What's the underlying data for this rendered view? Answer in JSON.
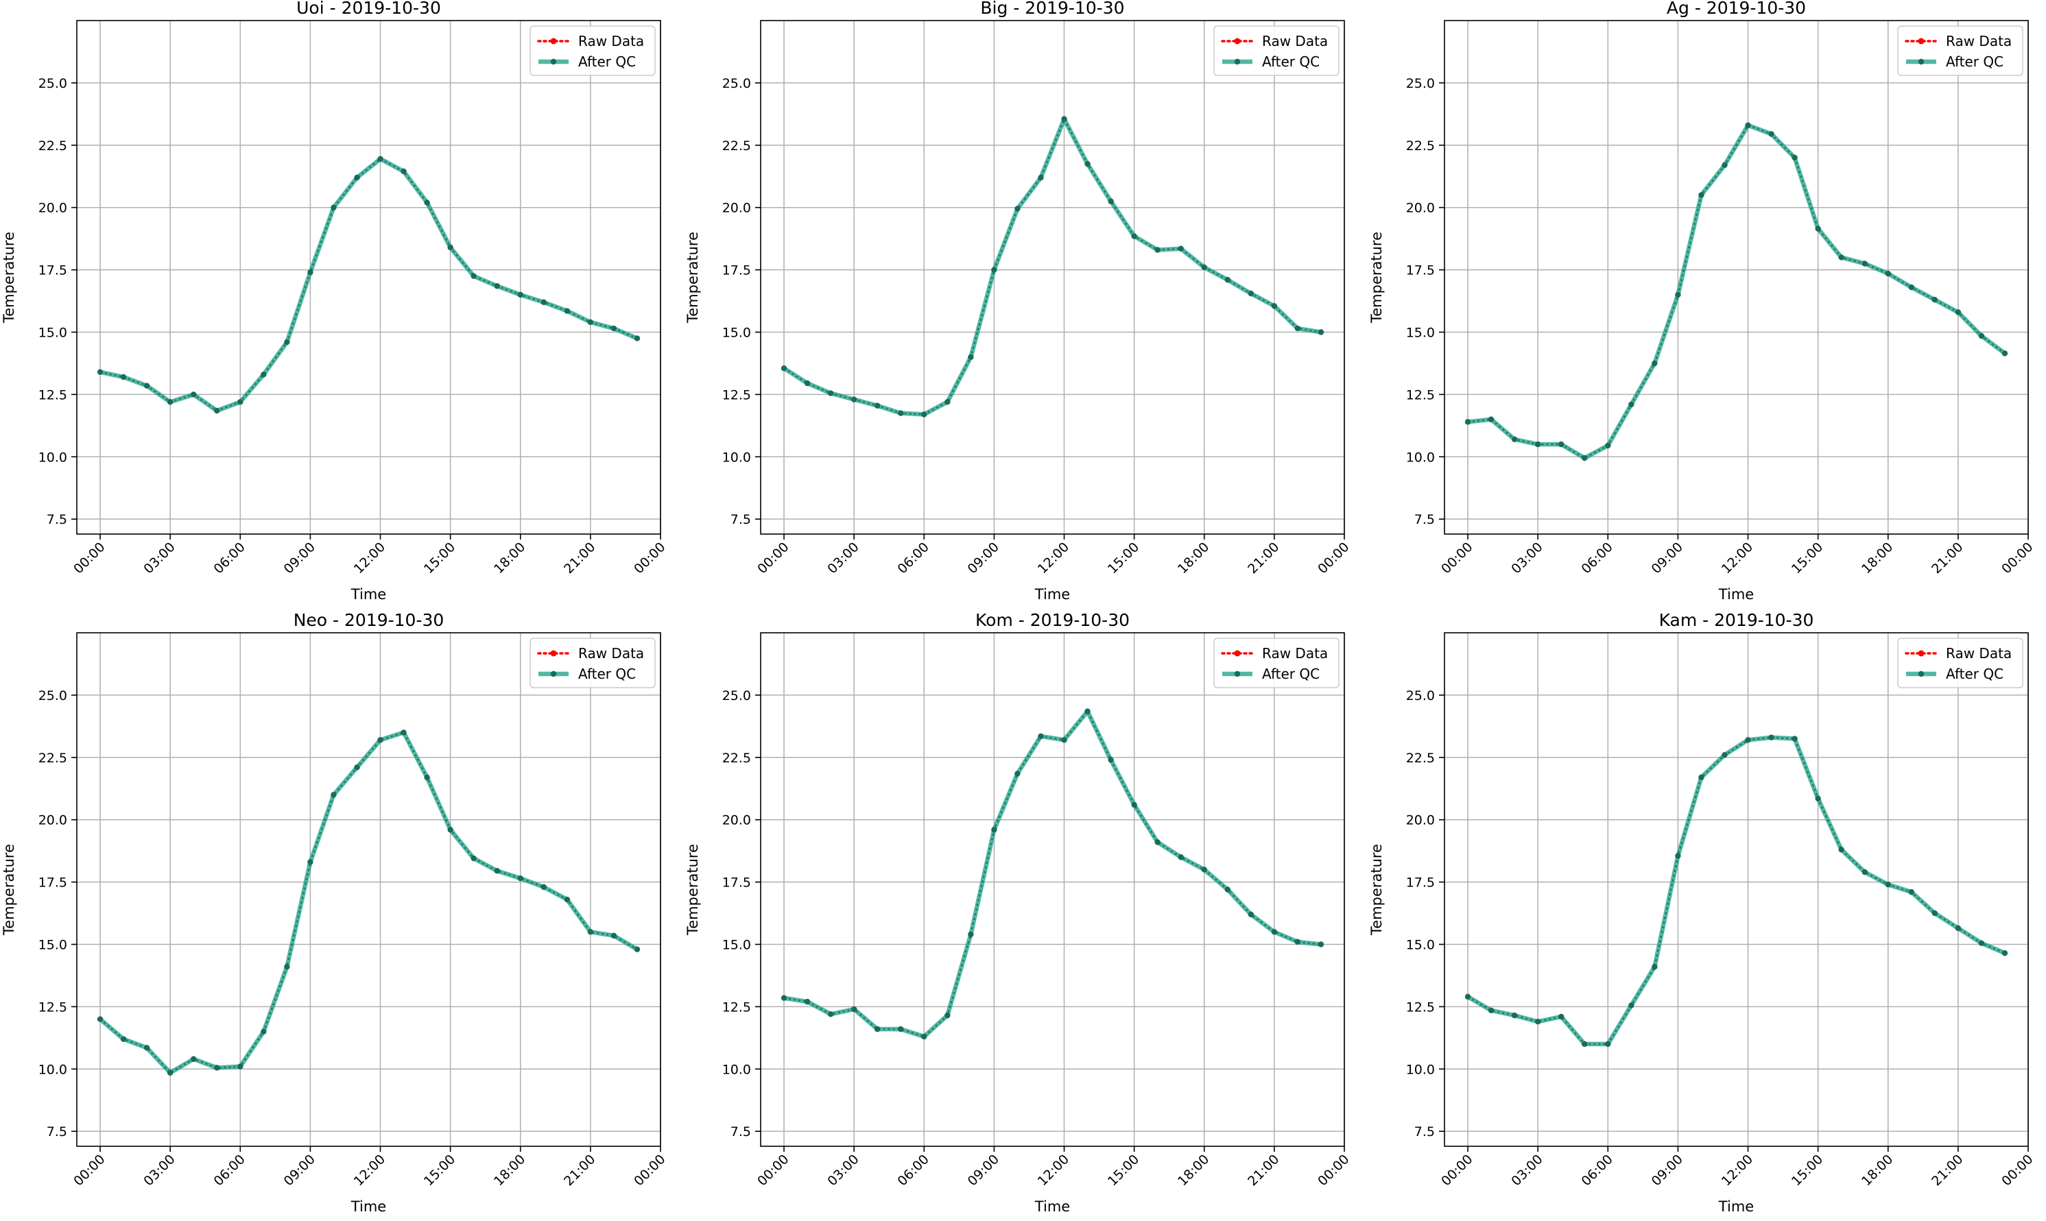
{
  "colors": {
    "raw": "#ff0000",
    "after_qc": "#16a085",
    "after_qc_marker": "#1b6b5a",
    "grid": "#b0b0b0",
    "legend_border": "#cccccc"
  },
  "chart_data": [
    {
      "type": "line",
      "title": "Uoi - 2019-10-30",
      "xlabel": "Time",
      "ylabel": "Temperature",
      "x": [
        "00:00",
        "01:00",
        "02:00",
        "03:00",
        "04:00",
        "05:00",
        "06:00",
        "07:00",
        "08:00",
        "09:00",
        "10:00",
        "11:00",
        "12:00",
        "13:00",
        "14:00",
        "15:00",
        "16:00",
        "17:00",
        "18:00",
        "19:00",
        "20:00",
        "21:00",
        "22:00",
        "23:00"
      ],
      "xlim": [
        -1,
        24
      ],
      "xticks": [
        "00:00",
        "03:00",
        "06:00",
        "09:00",
        "12:00",
        "15:00",
        "18:00",
        "21:00",
        "00:00"
      ],
      "ylim": [
        6.9,
        27.5
      ],
      "yticks": [
        "7.5",
        "10.0",
        "12.5",
        "15.0",
        "17.5",
        "20.0",
        "22.5",
        "25.0"
      ],
      "grid": true,
      "legend": "top-right",
      "series": [
        {
          "name": "Raw Data",
          "style": "dotted-red",
          "values": [
            13.4,
            13.2,
            12.85,
            12.2,
            12.5,
            11.85,
            12.2,
            13.3,
            14.6,
            17.4,
            20.0,
            21.2,
            21.95,
            21.45,
            20.2,
            18.4,
            17.25,
            16.85,
            16.5,
            16.2,
            15.85,
            15.4,
            15.15,
            14.75
          ]
        },
        {
          "name": "After QC",
          "style": "solid-green",
          "values": [
            13.4,
            13.2,
            12.85,
            12.2,
            12.5,
            11.85,
            12.2,
            13.3,
            14.6,
            17.4,
            20.0,
            21.2,
            21.95,
            21.45,
            20.2,
            18.4,
            17.25,
            16.85,
            16.5,
            16.2,
            15.85,
            15.4,
            15.15,
            14.75
          ]
        }
      ]
    },
    {
      "type": "line",
      "title": "Big - 2019-10-30",
      "xlabel": "Time",
      "ylabel": "Temperature",
      "x": [
        "00:00",
        "01:00",
        "02:00",
        "03:00",
        "04:00",
        "05:00",
        "06:00",
        "07:00",
        "08:00",
        "09:00",
        "10:00",
        "11:00",
        "12:00",
        "13:00",
        "14:00",
        "15:00",
        "16:00",
        "17:00",
        "18:00",
        "19:00",
        "20:00",
        "21:00",
        "22:00",
        "23:00"
      ],
      "xlim": [
        -1,
        24
      ],
      "xticks": [
        "00:00",
        "03:00",
        "06:00",
        "09:00",
        "12:00",
        "15:00",
        "18:00",
        "21:00",
        "00:00"
      ],
      "ylim": [
        6.9,
        27.5
      ],
      "yticks": [
        "7.5",
        "10.0",
        "12.5",
        "15.0",
        "17.5",
        "20.0",
        "22.5",
        "25.0"
      ],
      "grid": true,
      "legend": "top-right",
      "series": [
        {
          "name": "Raw Data",
          "style": "dotted-red",
          "values": [
            13.55,
            12.95,
            12.55,
            12.3,
            12.05,
            11.75,
            11.7,
            12.2,
            14.0,
            17.5,
            19.95,
            21.2,
            23.55,
            21.75,
            20.25,
            18.85,
            18.3,
            18.35,
            17.6,
            17.1,
            16.55,
            16.05,
            15.15,
            15.0
          ]
        },
        {
          "name": "After QC",
          "style": "solid-green",
          "values": [
            13.55,
            12.95,
            12.55,
            12.3,
            12.05,
            11.75,
            11.7,
            12.2,
            14.0,
            17.5,
            19.95,
            21.2,
            23.55,
            21.75,
            20.25,
            18.85,
            18.3,
            18.35,
            17.6,
            17.1,
            16.55,
            16.05,
            15.15,
            15.0
          ]
        }
      ]
    },
    {
      "type": "line",
      "title": "Ag - 2019-10-30",
      "xlabel": "Time",
      "ylabel": "Temperature",
      "x": [
        "00:00",
        "01:00",
        "02:00",
        "03:00",
        "04:00",
        "05:00",
        "06:00",
        "07:00",
        "08:00",
        "09:00",
        "10:00",
        "11:00",
        "12:00",
        "13:00",
        "14:00",
        "15:00",
        "16:00",
        "17:00",
        "18:00",
        "19:00",
        "20:00",
        "21:00",
        "22:00",
        "23:00"
      ],
      "xlim": [
        -1,
        24
      ],
      "xticks": [
        "00:00",
        "03:00",
        "06:00",
        "09:00",
        "12:00",
        "15:00",
        "18:00",
        "21:00",
        "00:00"
      ],
      "ylim": [
        6.9,
        27.5
      ],
      "yticks": [
        "7.5",
        "10.0",
        "12.5",
        "15.0",
        "17.5",
        "20.0",
        "22.5",
        "25.0"
      ],
      "grid": true,
      "legend": "top-right",
      "series": [
        {
          "name": "Raw Data",
          "style": "dotted-red",
          "values": [
            11.4,
            11.5,
            10.7,
            10.5,
            10.5,
            9.95,
            10.45,
            12.1,
            13.75,
            16.5,
            20.5,
            21.7,
            23.3,
            22.95,
            22.0,
            19.15,
            18.0,
            17.75,
            17.35,
            16.8,
            16.3,
            15.8,
            14.85,
            14.15
          ]
        },
        {
          "name": "After QC",
          "style": "solid-green",
          "values": [
            11.4,
            11.5,
            10.7,
            10.5,
            10.5,
            9.95,
            10.45,
            12.1,
            13.75,
            16.5,
            20.5,
            21.7,
            23.3,
            22.95,
            22.0,
            19.15,
            18.0,
            17.75,
            17.35,
            16.8,
            16.3,
            15.8,
            14.85,
            14.15
          ]
        }
      ]
    },
    {
      "type": "line",
      "title": "Neo - 2019-10-30",
      "xlabel": "Time",
      "ylabel": "Temperature",
      "x": [
        "00:00",
        "01:00",
        "02:00",
        "03:00",
        "04:00",
        "05:00",
        "06:00",
        "07:00",
        "08:00",
        "09:00",
        "10:00",
        "11:00",
        "12:00",
        "13:00",
        "14:00",
        "15:00",
        "16:00",
        "17:00",
        "18:00",
        "19:00",
        "20:00",
        "21:00",
        "22:00",
        "23:00"
      ],
      "xlim": [
        -1,
        24
      ],
      "xticks": [
        "00:00",
        "03:00",
        "06:00",
        "09:00",
        "12:00",
        "15:00",
        "18:00",
        "21:00",
        "00:00"
      ],
      "ylim": [
        6.9,
        27.5
      ],
      "yticks": [
        "7.5",
        "10.0",
        "12.5",
        "15.0",
        "17.5",
        "20.0",
        "22.5",
        "25.0"
      ],
      "grid": true,
      "legend": "top-right",
      "series": [
        {
          "name": "Raw Data",
          "style": "dotted-red",
          "values": [
            12.0,
            11.2,
            10.85,
            9.85,
            10.4,
            10.05,
            10.1,
            11.5,
            14.1,
            18.3,
            21.0,
            22.1,
            23.2,
            23.5,
            21.7,
            19.6,
            18.45,
            17.95,
            17.65,
            17.3,
            16.8,
            15.5,
            15.35,
            14.8
          ]
        },
        {
          "name": "After QC",
          "style": "solid-green",
          "values": [
            12.0,
            11.2,
            10.85,
            9.85,
            10.4,
            10.05,
            10.1,
            11.5,
            14.1,
            18.3,
            21.0,
            22.1,
            23.2,
            23.5,
            21.7,
            19.6,
            18.45,
            17.95,
            17.65,
            17.3,
            16.8,
            15.5,
            15.35,
            14.8
          ]
        }
      ]
    },
    {
      "type": "line",
      "title": "Kom - 2019-10-30",
      "xlabel": "Time",
      "ylabel": "Temperature",
      "x": [
        "00:00",
        "01:00",
        "02:00",
        "03:00",
        "04:00",
        "05:00",
        "06:00",
        "07:00",
        "08:00",
        "09:00",
        "10:00",
        "11:00",
        "12:00",
        "13:00",
        "14:00",
        "15:00",
        "16:00",
        "17:00",
        "18:00",
        "19:00",
        "20:00",
        "21:00",
        "22:00",
        "23:00"
      ],
      "xlim": [
        -1,
        24
      ],
      "xticks": [
        "00:00",
        "03:00",
        "06:00",
        "09:00",
        "12:00",
        "15:00",
        "18:00",
        "21:00",
        "00:00"
      ],
      "ylim": [
        6.9,
        27.5
      ],
      "yticks": [
        "7.5",
        "10.0",
        "12.5",
        "15.0",
        "17.5",
        "20.0",
        "22.5",
        "25.0"
      ],
      "grid": true,
      "legend": "top-right",
      "series": [
        {
          "name": "Raw Data",
          "style": "dotted-red",
          "values": [
            12.85,
            12.7,
            12.2,
            12.4,
            11.6,
            11.6,
            11.3,
            12.15,
            15.4,
            19.6,
            21.85,
            23.35,
            23.2,
            24.35,
            22.4,
            20.6,
            19.1,
            18.5,
            18.0,
            17.2,
            16.2,
            15.5,
            15.1,
            15.0
          ]
        },
        {
          "name": "After QC",
          "style": "solid-green",
          "values": [
            12.85,
            12.7,
            12.2,
            12.4,
            11.6,
            11.6,
            11.3,
            12.15,
            15.4,
            19.6,
            21.85,
            23.35,
            23.2,
            24.35,
            22.4,
            20.6,
            19.1,
            18.5,
            18.0,
            17.2,
            16.2,
            15.5,
            15.1,
            15.0
          ]
        }
      ]
    },
    {
      "type": "line",
      "title": "Kam - 2019-10-30",
      "xlabel": "Time",
      "ylabel": "Temperature",
      "x": [
        "00:00",
        "01:00",
        "02:00",
        "03:00",
        "04:00",
        "05:00",
        "06:00",
        "07:00",
        "08:00",
        "09:00",
        "10:00",
        "11:00",
        "12:00",
        "13:00",
        "14:00",
        "15:00",
        "16:00",
        "17:00",
        "18:00",
        "19:00",
        "20:00",
        "21:00",
        "22:00",
        "23:00"
      ],
      "xlim": [
        -1,
        24
      ],
      "xticks": [
        "00:00",
        "03:00",
        "06:00",
        "09:00",
        "12:00",
        "15:00",
        "18:00",
        "21:00",
        "00:00"
      ],
      "ylim": [
        6.9,
        27.5
      ],
      "yticks": [
        "7.5",
        "10.0",
        "12.5",
        "15.0",
        "17.5",
        "20.0",
        "22.5",
        "25.0"
      ],
      "grid": true,
      "legend": "top-right",
      "series": [
        {
          "name": "Raw Data",
          "style": "dotted-red",
          "values": [
            12.9,
            12.35,
            12.15,
            11.9,
            12.1,
            11.0,
            11.0,
            12.55,
            14.1,
            18.55,
            21.7,
            22.6,
            23.2,
            23.3,
            23.25,
            20.85,
            18.8,
            17.9,
            17.4,
            17.1,
            16.25,
            15.65,
            15.05,
            14.65
          ]
        },
        {
          "name": "After QC",
          "style": "solid-green",
          "values": [
            12.9,
            12.35,
            12.15,
            11.9,
            12.1,
            11.0,
            11.0,
            12.55,
            14.1,
            18.55,
            21.7,
            22.6,
            23.2,
            23.3,
            23.25,
            20.85,
            18.8,
            17.9,
            17.4,
            17.1,
            16.25,
            15.65,
            15.05,
            14.65
          ]
        }
      ]
    }
  ]
}
